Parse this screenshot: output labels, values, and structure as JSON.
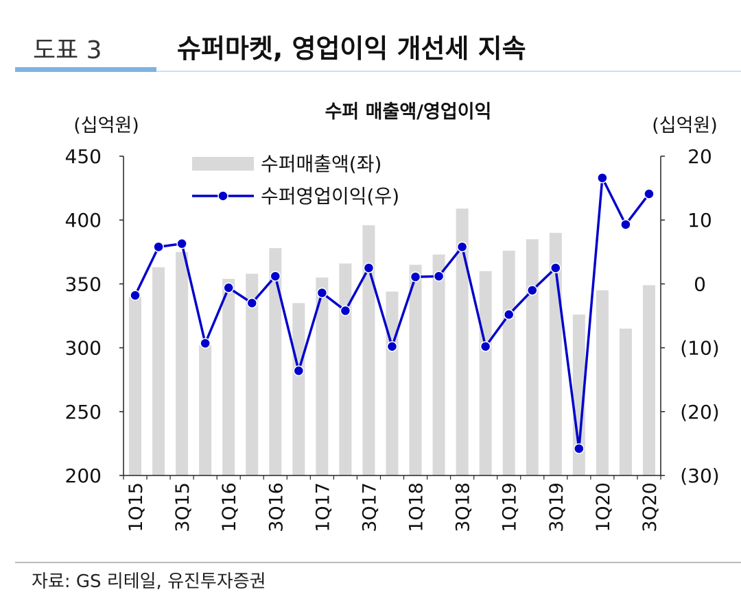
{
  "figure": {
    "label": "도표 3",
    "title": "슈퍼마켓, 영업이익 개선세 지속",
    "source": "자료: GS 리테일, 유진투자증권"
  },
  "colors": {
    "bar": "#d9d9d9",
    "line": "#0000cc",
    "accent_rule": "#7fb2e0"
  },
  "chart_data": {
    "type": "bar",
    "title": "수퍼 매출액/영업이익",
    "ylabel_left": "(십억원)",
    "ylabel_right": "(십억원)",
    "categories": [
      "1Q15",
      "2Q15",
      "3Q15",
      "4Q15",
      "1Q16",
      "2Q16",
      "3Q16",
      "4Q16",
      "1Q17",
      "2Q17",
      "3Q17",
      "4Q17",
      "1Q18",
      "2Q18",
      "3Q18",
      "4Q18",
      "1Q19",
      "2Q19",
      "3Q19",
      "4Q19",
      "1Q20",
      "2Q20",
      "3Q20"
    ],
    "tick_labels": [
      "1Q15",
      "",
      "3Q15",
      "",
      "1Q16",
      "",
      "3Q16",
      "",
      "1Q17",
      "",
      "3Q17",
      "",
      "1Q18",
      "",
      "3Q18",
      "",
      "1Q19",
      "",
      "3Q19",
      "",
      "1Q20",
      "",
      "3Q20"
    ],
    "ylim_left": [
      200,
      450
    ],
    "ylim_right": [
      -30,
      20
    ],
    "yticks_left": [
      "450",
      "400",
      "350",
      "300",
      "250",
      "200"
    ],
    "yticks_right": [
      "20",
      "10",
      "0",
      "(10)",
      "(20)",
      "(30)"
    ],
    "legend_position": "top-left",
    "series": [
      {
        "name": "수퍼매출액(좌)",
        "type": "bar",
        "axis": "left",
        "values": [
          340,
          363,
          375,
          302,
          354,
          358,
          378,
          335,
          355,
          366,
          396,
          344,
          365,
          373,
          409,
          360,
          376,
          385,
          390,
          326,
          345,
          315,
          349
        ]
      },
      {
        "name": "수퍼영업이익(우)",
        "type": "line",
        "axis": "right",
        "values": [
          -1.8,
          5.8,
          6.3,
          -9.3,
          -0.6,
          -3.0,
          1.2,
          -13.6,
          -1.4,
          -4.2,
          2.5,
          -9.8,
          1.1,
          1.2,
          5.8,
          -9.8,
          -4.8,
          -1.0,
          2.5,
          -25.8,
          16.6,
          9.3,
          14.1
        ]
      }
    ]
  }
}
